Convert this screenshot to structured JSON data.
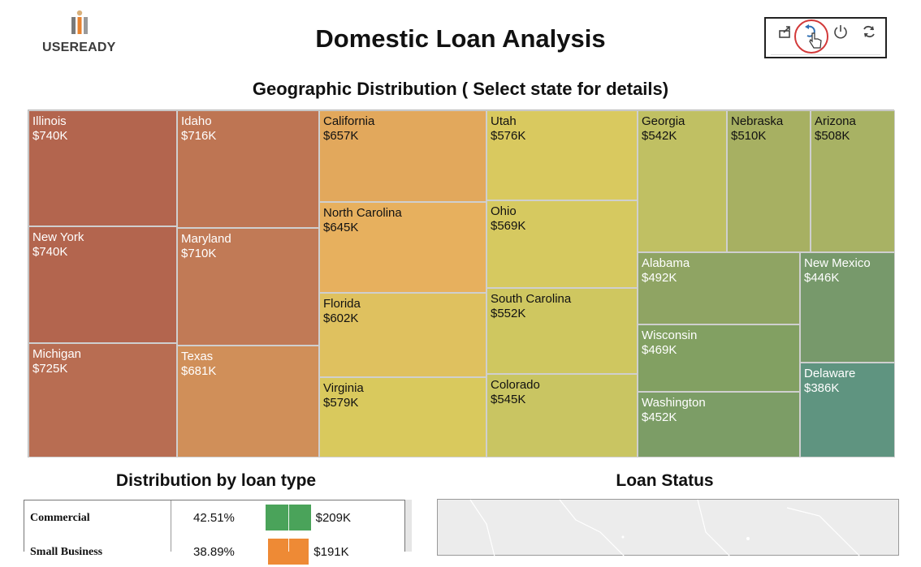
{
  "header": {
    "logo_text": "USEREADY",
    "title": "Domestic Loan Analysis"
  },
  "toolbar": {
    "icons": [
      "export-icon",
      "revert-icon",
      "pause-icon",
      "refresh-icon"
    ]
  },
  "treemap": {
    "subtitle": "Geographic Distribution ( Select state for details)",
    "tiles": [
      {
        "state": "Illinois",
        "value": "$740K",
        "color": "#b3654e"
      },
      {
        "state": "New York",
        "value": "$740K",
        "color": "#b3654e"
      },
      {
        "state": "Michigan",
        "value": "$725K",
        "color": "#b86d52"
      },
      {
        "state": "Idaho",
        "value": "$716K",
        "color": "#be7553"
      },
      {
        "state": "Maryland",
        "value": "$710K",
        "color": "#c17a56"
      },
      {
        "state": "Texas",
        "value": "$681K",
        "color": "#d08f59"
      },
      {
        "state": "California",
        "value": "$657K",
        "color": "#e2a85c"
      },
      {
        "state": "North Carolina",
        "value": "$645K",
        "color": "#e7b05e"
      },
      {
        "state": "Florida",
        "value": "$602K",
        "color": "#dfc15f"
      },
      {
        "state": "Virginia",
        "value": "$579K",
        "color": "#d9c95d"
      },
      {
        "state": "Utah",
        "value": "$576K",
        "color": "#d9c95f"
      },
      {
        "state": "Ohio",
        "value": "$569K",
        "color": "#d6c960"
      },
      {
        "state": "South Carolina",
        "value": "$552K",
        "color": "#cfc760"
      },
      {
        "state": "Colorado",
        "value": "$545K",
        "color": "#c9c562"
      },
      {
        "state": "Georgia",
        "value": "$542K",
        "color": "#c0c063"
      },
      {
        "state": "Nebraska",
        "value": "$510K",
        "color": "#a7b062"
      },
      {
        "state": "Arizona",
        "value": "$508K",
        "color": "#a8b264"
      },
      {
        "state": "Alabama",
        "value": "$492K",
        "color": "#8fa463"
      },
      {
        "state": "Wisconsin",
        "value": "$469K",
        "color": "#82a062"
      },
      {
        "state": "Washington",
        "value": "$452K",
        "color": "#7c9d66"
      },
      {
        "state": "New Mexico",
        "value": "$446K",
        "color": "#77996b"
      },
      {
        "state": "Delaware",
        "value": "$386K",
        "color": "#5f9480"
      }
    ]
  },
  "loan_type": {
    "title": "Distribution by loan type",
    "rows": [
      {
        "label": "Commercial",
        "percent": "42.51%",
        "value": "$209K",
        "share": 0.4251,
        "color": "#4aa35a"
      },
      {
        "label": "Small Business",
        "percent": "38.89%",
        "value": "$191K",
        "share": 0.3889,
        "color": "#ee8a35"
      }
    ]
  },
  "loan_status": {
    "title": "Loan Status"
  }
}
